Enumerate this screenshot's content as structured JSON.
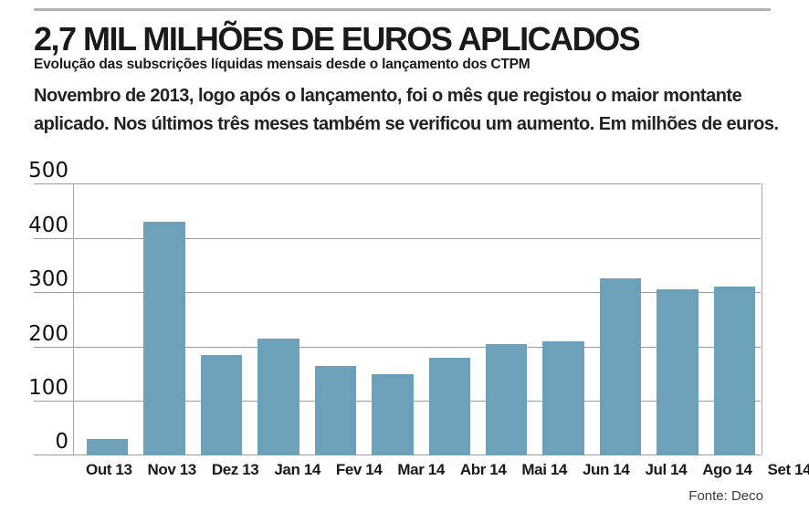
{
  "header": {
    "title": "2,7 MIL MILHÕES DE EUROS APLICADOS",
    "subtitle": "Evolução das subscrições líquidas mensais desde o lançamento dos CTPM",
    "lede": "Novembro de 2013, logo após o lançamento, foi o mês que registou o maior montante aplicado. Nos últimos três meses também se verificou um aumento. Em milhões de euros."
  },
  "source": "Fonte: Deco",
  "chart_data": {
    "type": "bar",
    "title": "Evolução das subscrições líquidas mensais desde o lançamento dos CTPM",
    "unit_note": "Em milhões de euros",
    "categories": [
      "Out 13",
      "Nov 13",
      "Dez 13",
      "Jan 14",
      "Fev 14",
      "Mar 14",
      "Abr 14",
      "Mai 14",
      "Jun 14",
      "Jul 14",
      "Ago 14",
      "Set 14"
    ],
    "values": [
      30,
      430,
      185,
      215,
      165,
      150,
      180,
      205,
      210,
      325,
      305,
      310
    ],
    "xlabel": "",
    "ylabel": "",
    "ylim": [
      0,
      500
    ],
    "yticks": [
      0,
      100,
      200,
      300,
      400,
      500
    ],
    "grid": true,
    "legend": false,
    "bar_color": "#6CA1B9",
    "grid_color": "#9c9c9c",
    "axis_line_color": "#a6a6a6"
  }
}
